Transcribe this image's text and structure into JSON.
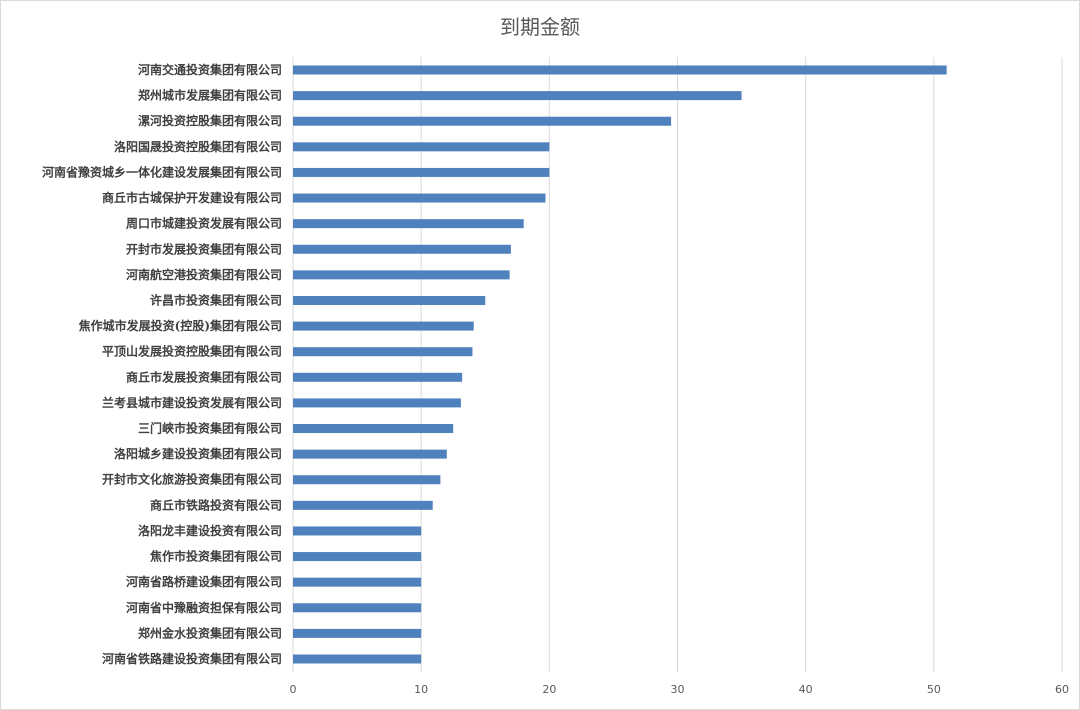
{
  "chart_data": {
    "type": "bar",
    "orientation": "horizontal",
    "title": "到期金额",
    "xlabel": "",
    "ylabel": "",
    "xlim": [
      0,
      60
    ],
    "x_ticks": [
      "0",
      "10",
      "20",
      "30",
      "40",
      "50",
      "60"
    ],
    "grid": "vertical",
    "legend": "none",
    "bar_color": "#4f81bd",
    "categories": [
      "河南交通投资集团有限公司",
      "郑州城市发展集团有限公司",
      "漯河投资控股集团有限公司",
      "洛阳国晟投资控股集团有限公司",
      "河南省豫资城乡一体化建设发展集团有限公司",
      "商丘市古城保护开发建设有限公司",
      "周口市城建投资发展有限公司",
      "开封市发展投资集团有限公司",
      "河南航空港投资集团有限公司",
      "许昌市投资集团有限公司",
      "焦作城市发展投资(控股)集团有限公司",
      "平顶山发展投资控股集团有限公司",
      "商丘市发展投资集团有限公司",
      "兰考县城市建设投资发展有限公司",
      "三门峡市投资集团有限公司",
      "洛阳城乡建设投资集团有限公司",
      "开封市文化旅游投资集团有限公司",
      "商丘市铁路投资有限公司",
      "洛阳龙丰建设投资有限公司",
      "焦作市投资集团有限公司",
      "河南省路桥建设集团有限公司",
      "河南省中豫融资担保有限公司",
      "郑州金水投资集团有限公司",
      "河南省铁路建设投资集团有限公司"
    ],
    "values": [
      51,
      35,
      29.5,
      20,
      20,
      19.7,
      18,
      17,
      16.9,
      15,
      14.1,
      14,
      13.2,
      13.1,
      12.5,
      12,
      11.5,
      10.9,
      10,
      10,
      10,
      10,
      10,
      10
    ]
  }
}
